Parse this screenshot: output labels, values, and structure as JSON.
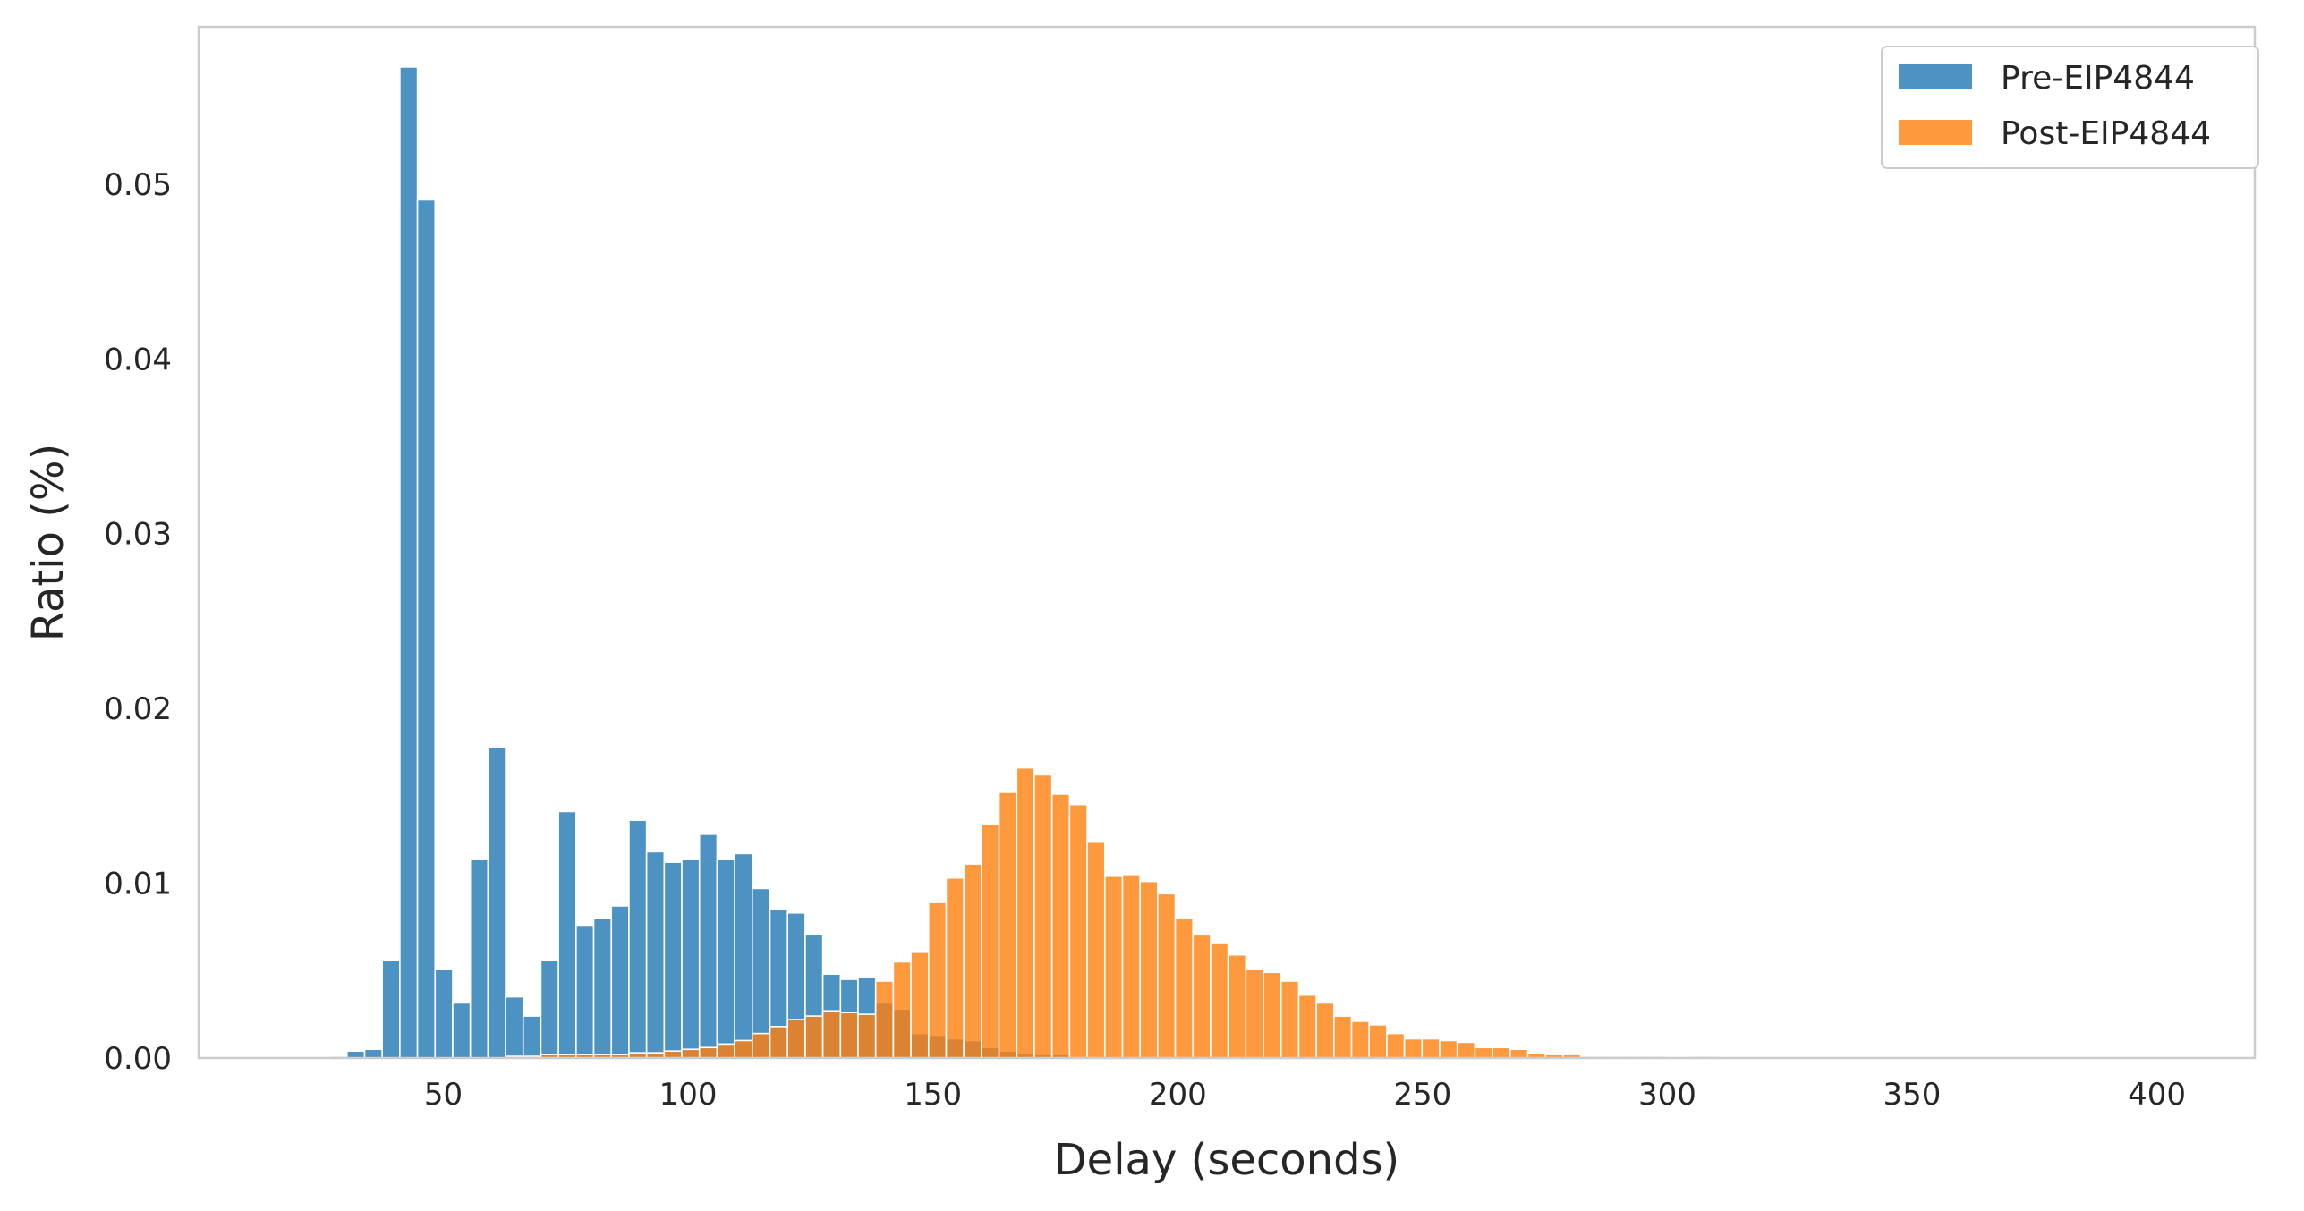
{
  "chart_data": {
    "type": "bar",
    "title": "",
    "xlabel": "Delay (seconds)",
    "ylabel": "Ratio (%)",
    "xlim": [
      0,
      420
    ],
    "ylim": [
      0,
      0.059
    ],
    "xticks": [
      50,
      100,
      150,
      200,
      250,
      300,
      350,
      400
    ],
    "yticks": [
      0.0,
      0.01,
      0.02,
      0.03,
      0.04,
      0.05
    ],
    "ytick_labels": [
      "0.00",
      "0.01",
      "0.02",
      "0.03",
      "0.04",
      "0.05"
    ],
    "grid": false,
    "legend_position": "top-right",
    "bin_width": 3.6,
    "series": [
      {
        "name": "Pre-EIP4844",
        "color": "#1f77b4",
        "values": [
          [
            28.5,
            0.0001
          ],
          [
            32.1,
            0.0004
          ],
          [
            35.7,
            0.0005
          ],
          [
            39.3,
            0.0056
          ],
          [
            42.9,
            0.0567
          ],
          [
            46.5,
            0.0491
          ],
          [
            50.1,
            0.0051
          ],
          [
            53.7,
            0.0032
          ],
          [
            57.3,
            0.0114
          ],
          [
            60.9,
            0.0178
          ],
          [
            64.5,
            0.0035
          ],
          [
            68.1,
            0.0024
          ],
          [
            71.7,
            0.0056
          ],
          [
            75.3,
            0.0141
          ],
          [
            78.9,
            0.0076
          ],
          [
            82.5,
            0.008
          ],
          [
            86.1,
            0.0087
          ],
          [
            89.7,
            0.0136
          ],
          [
            93.3,
            0.0118
          ],
          [
            96.9,
            0.0112
          ],
          [
            100.5,
            0.0114
          ],
          [
            104.1,
            0.0128
          ],
          [
            107.7,
            0.0114
          ],
          [
            111.3,
            0.0117
          ],
          [
            114.9,
            0.0097
          ],
          [
            118.5,
            0.0085
          ],
          [
            122.1,
            0.0083
          ],
          [
            125.7,
            0.0071
          ],
          [
            129.3,
            0.0048
          ],
          [
            132.9,
            0.0045
          ],
          [
            136.5,
            0.0046
          ],
          [
            140.1,
            0.0032
          ],
          [
            143.7,
            0.0028
          ],
          [
            147.3,
            0.0014
          ],
          [
            150.9,
            0.0013
          ],
          [
            154.5,
            0.0011
          ],
          [
            158.1,
            0.001
          ],
          [
            161.7,
            0.0006
          ],
          [
            165.3,
            0.0004
          ],
          [
            168.9,
            0.0003
          ],
          [
            172.5,
            0.0002
          ],
          [
            176.1,
            0.0002
          ]
        ]
      },
      {
        "name": "Post-EIP4844",
        "color": "#ff7f0e",
        "values": [
          [
            64.5,
            0.0001
          ],
          [
            68.1,
            0.0001
          ],
          [
            71.7,
            0.0002
          ],
          [
            75.3,
            0.0002
          ],
          [
            78.9,
            0.0002
          ],
          [
            82.5,
            0.0002
          ],
          [
            86.1,
            0.0002
          ],
          [
            89.7,
            0.0003
          ],
          [
            93.3,
            0.0003
          ],
          [
            96.9,
            0.0004
          ],
          [
            100.5,
            0.0005
          ],
          [
            104.1,
            0.0006
          ],
          [
            107.7,
            0.0008
          ],
          [
            111.3,
            0.001
          ],
          [
            114.9,
            0.0014
          ],
          [
            118.5,
            0.0018
          ],
          [
            122.1,
            0.0022
          ],
          [
            125.7,
            0.0024
          ],
          [
            129.3,
            0.0027
          ],
          [
            132.9,
            0.0026
          ],
          [
            136.5,
            0.0025
          ],
          [
            140.1,
            0.0044
          ],
          [
            143.7,
            0.0055
          ],
          [
            147.3,
            0.0061
          ],
          [
            150.9,
            0.0089
          ],
          [
            154.5,
            0.0103
          ],
          [
            158.1,
            0.0111
          ],
          [
            161.7,
            0.0134
          ],
          [
            165.3,
            0.0152
          ],
          [
            168.9,
            0.0166
          ],
          [
            172.5,
            0.0162
          ],
          [
            176.1,
            0.0151
          ],
          [
            179.7,
            0.0145
          ],
          [
            183.3,
            0.0124
          ],
          [
            186.9,
            0.0104
          ],
          [
            190.5,
            0.0105
          ],
          [
            194.1,
            0.0101
          ],
          [
            197.7,
            0.0094
          ],
          [
            201.3,
            0.008
          ],
          [
            204.9,
            0.0071
          ],
          [
            208.5,
            0.0066
          ],
          [
            212.1,
            0.0059
          ],
          [
            215.7,
            0.0051
          ],
          [
            219.3,
            0.0049
          ],
          [
            222.9,
            0.0044
          ],
          [
            226.5,
            0.0036
          ],
          [
            230.1,
            0.0032
          ],
          [
            233.7,
            0.0024
          ],
          [
            237.3,
            0.0021
          ],
          [
            240.9,
            0.0019
          ],
          [
            244.5,
            0.0014
          ],
          [
            248.1,
            0.0011
          ],
          [
            251.7,
            0.0011
          ],
          [
            255.3,
            0.001
          ],
          [
            258.9,
            0.0009
          ],
          [
            262.5,
            0.0006
          ],
          [
            266.1,
            0.0006
          ],
          [
            269.7,
            0.0005
          ],
          [
            273.3,
            0.0003
          ],
          [
            276.9,
            0.0002
          ],
          [
            280.5,
            0.0002
          ],
          [
            284.1,
            0.0001
          ],
          [
            287.7,
            0.0001
          ],
          [
            291.3,
            0.0001
          ],
          [
            294.9,
            0.0001
          ],
          [
            298.5,
            0.0001
          ],
          [
            305.7,
            0.0001
          ],
          [
            309.3,
            0.0001
          ]
        ]
      }
    ]
  }
}
